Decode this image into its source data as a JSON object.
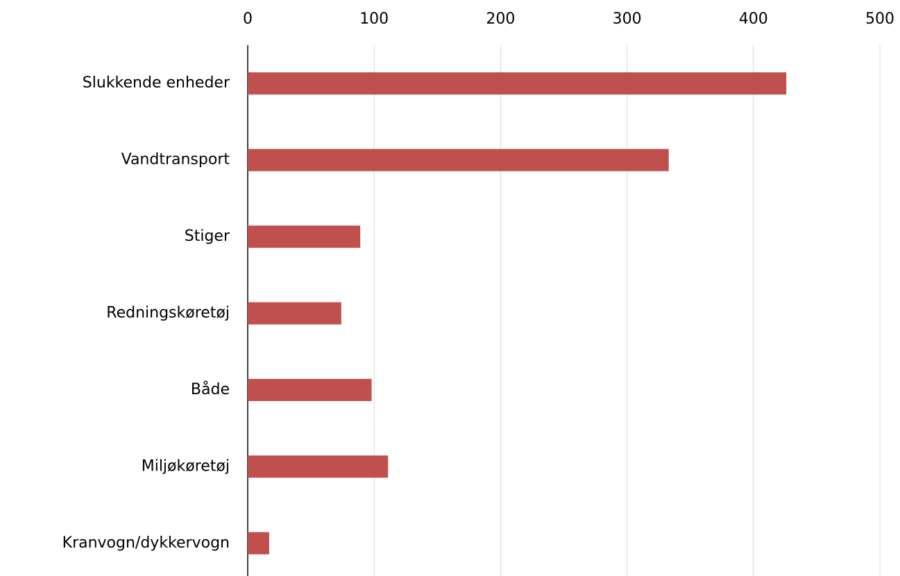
{
  "chart_data": {
    "type": "bar",
    "orientation": "horizontal",
    "categories": [
      "Slukkende enheder",
      "Vandtransport",
      "Stiger",
      "Redningskøretøj",
      "Både",
      "Miljøkøretøj",
      "Kranvogn/dykkervogn"
    ],
    "values": [
      426,
      333,
      89,
      74,
      98,
      111,
      17
    ],
    "color": "#c0504d",
    "xlim": [
      0,
      500
    ],
    "xticks": [
      0,
      100,
      200,
      300,
      400,
      500
    ],
    "grid": true
  }
}
